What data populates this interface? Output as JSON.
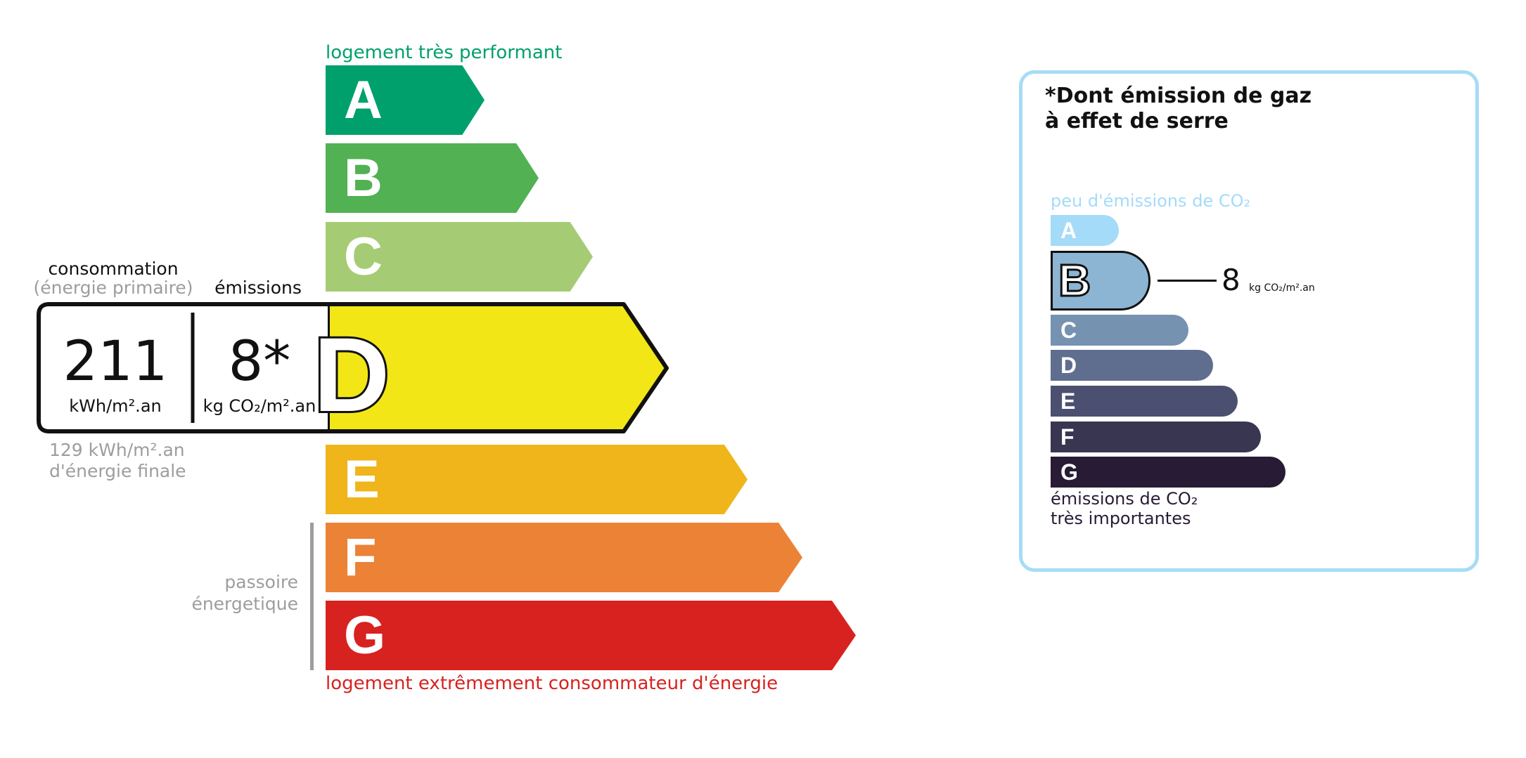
{
  "energy": {
    "top_label": "logement très performant",
    "bottom_label": "logement extrêmement consommateur d'énergie",
    "passoire_label": [
      "passoire",
      "énergetique"
    ],
    "classes": [
      {
        "letter": "A",
        "color": "#00a06d"
      },
      {
        "letter": "B",
        "color": "#52b153"
      },
      {
        "letter": "C",
        "color": "#a5cc74"
      },
      {
        "letter": "D",
        "color": "#f2e617"
      },
      {
        "letter": "E",
        "color": "#efb51a"
      },
      {
        "letter": "F",
        "color": "#eb8235"
      },
      {
        "letter": "G",
        "color": "#d7221f"
      }
    ],
    "current_class": "D",
    "consumption_label": "consommation",
    "consumption_sublabel": "(énergie primaire)",
    "emissions_label": "émissions",
    "consumption_value": "211",
    "consumption_unit": "kWh/m².an",
    "emissions_value": "8*",
    "emissions_unit": "kg CO₂/m².an",
    "final_energy_value": "129 kWh/m².an",
    "final_energy_label": "d'énergie finale",
    "top_color": "#00a06d",
    "bottom_color": "#d7221f"
  },
  "ges": {
    "title_line1": "*Dont émission de gaz",
    "title_line2": "à effet de serre",
    "top_label": "peu d'émissions de CO₂",
    "bottom_label_line1": "émissions de CO₂",
    "bottom_label_line2": "très importantes",
    "classes": [
      {
        "letter": "A",
        "color": "#a4dbf8"
      },
      {
        "letter": "B",
        "color": "#8cb4d3"
      },
      {
        "letter": "C",
        "color": "#7692b1"
      },
      {
        "letter": "D",
        "color": "#5f6d8f"
      },
      {
        "letter": "E",
        "color": "#4c5070"
      },
      {
        "letter": "F",
        "color": "#383650"
      },
      {
        "letter": "G",
        "color": "#281b35"
      }
    ],
    "current_class": "B",
    "value": "8",
    "unit": "kg CO₂/m².an",
    "border_color": "#a6dcf5"
  }
}
